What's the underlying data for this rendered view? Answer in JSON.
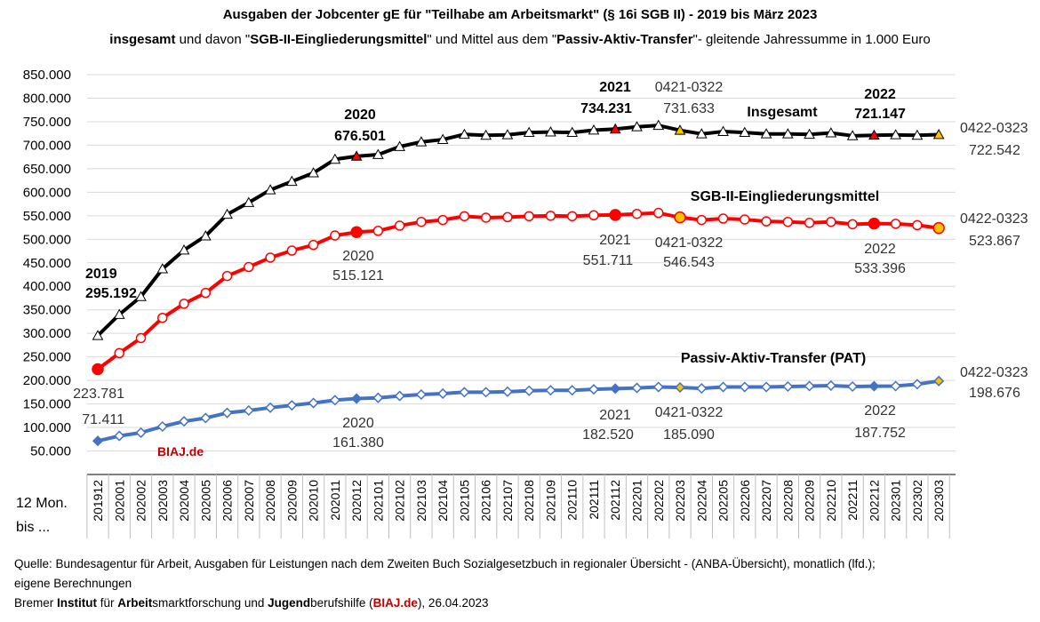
{
  "title": {
    "line1": "Ausgaben der Jobcenter gE für \"Teilhabe am Arbeitsmarkt\" (§ 16i SGB II) - 2019 bis März 2023",
    "line2_a": "insgesamt",
    "line2_b": " und davon \"",
    "line2_c": "SGB-II-Eingliederungsmittel",
    "line2_d": "\" und Mittel aus dem \"",
    "line2_e": "Passiv-Aktiv-Transfer",
    "line2_f": "\"- gleitende Jahressumme in 1.000 Euro"
  },
  "axis": {
    "xlabel_line1": "12 Mon.",
    "xlabel_line2": "bis ..."
  },
  "watermark": "BIAJ.de",
  "footer": {
    "line1": "Quelle: Bundesagentur für Arbeit, Ausgaben für Leistungen nach dem Zweiten Buch Sozialgesetzbuch in regionaler Übersicht - (ANBA-Übersicht), monatlich (lfd.);",
    "line2": "eigene Berechnungen",
    "l3_a": "Bremer ",
    "l3_b": "Institut",
    "l3_c": " für ",
    "l3_d": "Arbeit",
    "l3_e": "smarktforschung und ",
    "l3_f": "Jugend",
    "l3_g": "berufshilfe (",
    "l3_h": "BIAJ.de",
    "l3_i": "), 26.04.2023"
  },
  "chart_data": {
    "type": "line",
    "ylim": [
      0,
      850000
    ],
    "yticks": [
      "850.000",
      "800.000",
      "750.000",
      "700.000",
      "650.000",
      "600.000",
      "550.000",
      "500.000",
      "450.000",
      "400.000",
      "350.000",
      "300.000",
      "250.000",
      "200.000",
      "150.000",
      "100.000",
      "50.000"
    ],
    "x": [
      "201912",
      "202001",
      "202002",
      "202003",
      "202004",
      "202005",
      "202006",
      "202007",
      "202008",
      "202009",
      "202010",
      "202011",
      "202012",
      "202101",
      "202102",
      "202103",
      "202104",
      "202105",
      "202106",
      "202107",
      "202108",
      "202109",
      "202110",
      "202111",
      "202112",
      "202201",
      "202202",
      "202203",
      "202204",
      "202205",
      "202206",
      "202207",
      "202208",
      "202209",
      "202210",
      "202211",
      "202212",
      "202301",
      "202302",
      "202303"
    ],
    "series": [
      {
        "name": "Insgesamt",
        "color": "#000000",
        "marker": "triangle",
        "values": [
          295192,
          340000,
          378000,
          437000,
          477000,
          507000,
          553000,
          578000,
          605000,
          623000,
          641000,
          670000,
          676501,
          680000,
          697000,
          707000,
          712000,
          723000,
          721000,
          722000,
          727000,
          728000,
          727000,
          732000,
          734231,
          739000,
          742000,
          731633,
          724000,
          729000,
          727000,
          724000,
          724000,
          723000,
          726000,
          720000,
          721147,
          722000,
          721000,
          722542
        ],
        "highlight": {
          "red": [
            12,
            24,
            36
          ],
          "yellow": [
            27,
            39
          ]
        }
      },
      {
        "name": "SGB-II-Eingliederungsmittel",
        "color": "#ff0000",
        "marker": "circle",
        "values": [
          223781,
          258000,
          290000,
          333000,
          363000,
          386000,
          422000,
          441000,
          461000,
          476000,
          488000,
          508000,
          515121,
          518000,
          529000,
          537000,
          541000,
          549000,
          546000,
          547000,
          549000,
          550000,
          549000,
          551000,
          551711,
          554000,
          556000,
          546543,
          541000,
          544000,
          542000,
          538000,
          537000,
          535000,
          537000,
          532000,
          533396,
          533000,
          530000,
          523867
        ],
        "highlight": {
          "red": [
            0,
            12,
            24,
            36
          ],
          "yellow": [
            27,
            39
          ]
        }
      },
      {
        "name": "Passiv-Aktiv-Transfer (PAT)",
        "color": "#4472c4",
        "marker": "diamond",
        "values": [
          71411,
          82000,
          89000,
          102000,
          113000,
          120000,
          131000,
          136000,
          142000,
          147000,
          152000,
          158000,
          161380,
          163000,
          167000,
          170000,
          172000,
          175000,
          175000,
          176000,
          178000,
          179000,
          179000,
          181000,
          182520,
          184000,
          186000,
          185090,
          183000,
          186000,
          186000,
          186000,
          187000,
          188000,
          189000,
          187000,
          187752,
          188000,
          192000,
          198676
        ],
        "highlight": {
          "blue": [
            0,
            12,
            24,
            36
          ],
          "yellow": [
            27,
            39
          ]
        }
      }
    ],
    "labels": [
      {
        "series": 0,
        "text": "2019",
        "bold": true
      },
      {
        "series": 0,
        "text": "295.192",
        "bold": true
      },
      {
        "series": 0,
        "text": "2020",
        "bold": true
      },
      {
        "series": 0,
        "text": "676.501",
        "bold": true
      },
      {
        "series": 0,
        "text": "2021",
        "bold": true
      },
      {
        "series": 0,
        "text": "734.231",
        "bold": true
      },
      {
        "series": 0,
        "text": "0421-0322",
        "bold": false
      },
      {
        "series": 0,
        "text": "731.633",
        "bold": false
      },
      {
        "series": 0,
        "text": "Insgesamt",
        "bold": true
      },
      {
        "series": 0,
        "text": "2022",
        "bold": true
      },
      {
        "series": 0,
        "text": "721.147",
        "bold": true
      },
      {
        "series": 0,
        "text": "0422-0323",
        "bold": false
      },
      {
        "series": 0,
        "text": "722.542",
        "bold": false
      },
      {
        "series": 1,
        "text": "SGB-II-Eingliederungsmittel",
        "bold": true
      },
      {
        "series": 1,
        "text": "223.781",
        "bold": false
      },
      {
        "series": 1,
        "text": "2020",
        "bold": false
      },
      {
        "series": 1,
        "text": "515.121",
        "bold": false
      },
      {
        "series": 1,
        "text": "2021",
        "bold": false
      },
      {
        "series": 1,
        "text": "551.711",
        "bold": false
      },
      {
        "series": 1,
        "text": "0421-0322",
        "bold": false
      },
      {
        "series": 1,
        "text": "546.543",
        "bold": false
      },
      {
        "series": 1,
        "text": "2022",
        "bold": false
      },
      {
        "series": 1,
        "text": "533.396",
        "bold": false
      },
      {
        "series": 1,
        "text": "0422-0323",
        "bold": false
      },
      {
        "series": 1,
        "text": "523.867",
        "bold": false
      },
      {
        "series": 2,
        "text": "Passiv-Aktiv-Transfer (PAT)",
        "bold": true
      },
      {
        "series": 2,
        "text": "71.411",
        "bold": false
      },
      {
        "series": 2,
        "text": "2020",
        "bold": false
      },
      {
        "series": 2,
        "text": "161.380",
        "bold": false
      },
      {
        "series": 2,
        "text": "2021",
        "bold": false
      },
      {
        "series": 2,
        "text": "182.520",
        "bold": false
      },
      {
        "series": 2,
        "text": "0421-0322",
        "bold": false
      },
      {
        "series": 2,
        "text": "185.090",
        "bold": false
      },
      {
        "series": 2,
        "text": "2022",
        "bold": false
      },
      {
        "series": 2,
        "text": "187.752",
        "bold": false
      },
      {
        "series": 2,
        "text": "0422-0323",
        "bold": false
      },
      {
        "series": 2,
        "text": "198.676",
        "bold": false
      }
    ]
  }
}
